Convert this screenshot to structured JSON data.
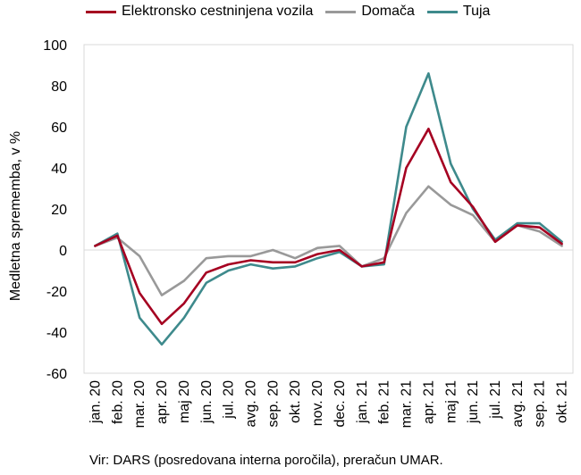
{
  "chart_data": {
    "type": "line",
    "title": "",
    "xlabel": "",
    "ylabel": "Medletna sprememba, v %",
    "ylim": [
      -60,
      100
    ],
    "yticks": [
      -60,
      -40,
      -20,
      0,
      20,
      40,
      60,
      80,
      100
    ],
    "grid": false,
    "legend_position": "top",
    "categories": [
      "jan. 20",
      "feb. 20",
      "mar. 20",
      "apr. 20",
      "maj 20",
      "jun. 20",
      "jul. 20",
      "avg. 20",
      "sep. 20",
      "okt. 20",
      "nov. 20",
      "dec. 20",
      "jan. 21",
      "feb. 21",
      "mar. 21",
      "apr. 21",
      "maj 21",
      "jun. 21",
      "jul. 21",
      "avg. 21",
      "sep. 21",
      "okt. 21"
    ],
    "series": [
      {
        "name": "Elektronsko cestninjena vozila",
        "color": "#a50021",
        "values": [
          2,
          7,
          -21,
          -36,
          -26,
          -11,
          -7,
          -5,
          -6,
          -6,
          -2,
          0,
          -8,
          -6,
          40,
          59,
          33,
          21,
          4,
          12,
          11,
          3
        ]
      },
      {
        "name": "Domača",
        "color": "#999999",
        "values": [
          2,
          6,
          -3,
          -22,
          -15,
          -4,
          -3,
          -3,
          0,
          -4,
          1,
          2,
          -8,
          -4,
          18,
          31,
          22,
          17,
          4,
          12,
          9,
          2
        ]
      },
      {
        "name": "Tuja",
        "color": "#3e8a8c",
        "values": [
          2,
          8,
          -33,
          -46,
          -33,
          -16,
          -10,
          -7,
          -9,
          -8,
          -4,
          -1,
          -8,
          -7,
          60,
          86,
          42,
          20,
          5,
          13,
          13,
          4
        ]
      }
    ]
  },
  "source": "Vir: DARS (posredovana interna poročila), preračun UMAR."
}
